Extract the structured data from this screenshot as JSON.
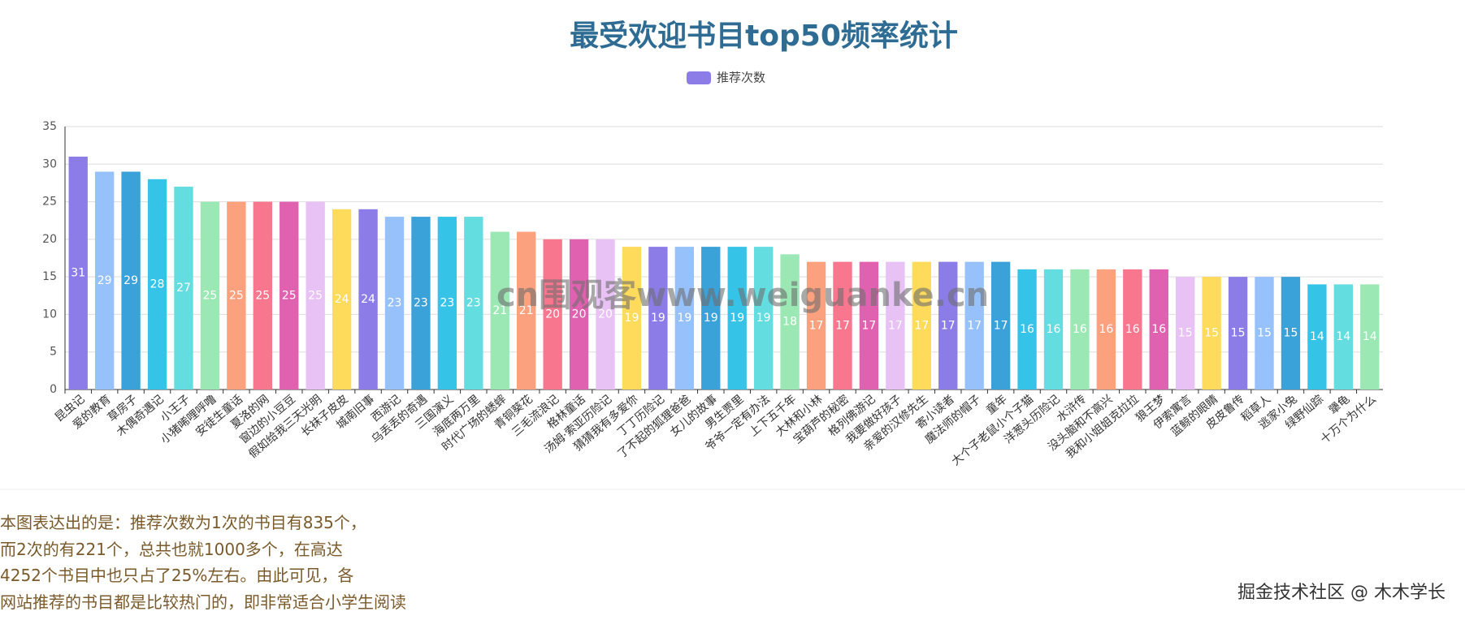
{
  "chart_data": {
    "type": "bar",
    "title": "最受欢迎书目top50频率统计",
    "legend": "推荐次数",
    "legend_color": "#8b7ce8",
    "categories": [
      "昆虫记",
      "爱的教育",
      "草房子",
      "木偶奇遇记",
      "小王子",
      "小猪唏哩呼噜",
      "安徒生童话",
      "夏洛的网",
      "窗边的小豆豆",
      "假如给我三天光明",
      "长袜子皮皮",
      "城南旧事",
      "西游记",
      "乌丢丢的奇遇",
      "三国演义",
      "海底两万里",
      "时代广场的蟋蟀",
      "青铜葵花",
      "三毛流浪记",
      "格林童话",
      "汤姆·索亚历险记",
      "猜猜我有多爱你",
      "丁丁历险记",
      "了不起的狐狸爸爸",
      "女儿的故事",
      "男生贾里",
      "爷爷一定有办法",
      "上下五千年",
      "大林和小林",
      "宝葫芦的秘密",
      "格列佛游记",
      "我要做好孩子",
      "亲爱的汉修先生",
      "寄小读者",
      "魔法师的帽子",
      "童年",
      "大个子老鼠小个子猫",
      "洋葱头历险记",
      "水浒传",
      "没头脑和不高兴",
      "我和小姐姐克拉拉",
      "狼王梦",
      "伊索寓言",
      "蓝鲸的眼睛",
      "皮皮鲁传",
      "稻草人",
      "逃家小兔",
      "绿野仙踪",
      "犟龟",
      "十万个为什么"
    ],
    "values": [
      31,
      29,
      29,
      28,
      27,
      25,
      25,
      25,
      25,
      25,
      24,
      24,
      23,
      23,
      23,
      23,
      21,
      21,
      20,
      20,
      20,
      19,
      19,
      19,
      19,
      19,
      19,
      18,
      17,
      17,
      17,
      17,
      17,
      17,
      17,
      17,
      16,
      16,
      16,
      16,
      16,
      16,
      15,
      15,
      15,
      15,
      15,
      14,
      14,
      14
    ],
    "colors": [
      "#8b7ce8",
      "#96c1fa",
      "#3ba1d9",
      "#35c4e8",
      "#63dde0",
      "#9ce8b4",
      "#fca17d",
      "#f9768f",
      "#e061b0",
      "#e8c1f5",
      "#fedb5b"
    ],
    "ylim": [
      0,
      35
    ],
    "yticks": [
      0,
      5,
      10,
      15,
      20,
      25,
      30,
      35
    ],
    "grid": true
  },
  "watermark": "cn围观客www.weiguanke.cn",
  "description": [
    "本图表达出的是：推荐次数为1次的书目有835个，",
    "而2次的有221个，总共也就1000多个，在高达",
    "4252个书目中也只占了25%左右。由此可见，各",
    "网站推荐的书目都是比较热门的，即非常适合小学生阅读"
  ],
  "footer": "掘金技术社区 @ 木木学长"
}
